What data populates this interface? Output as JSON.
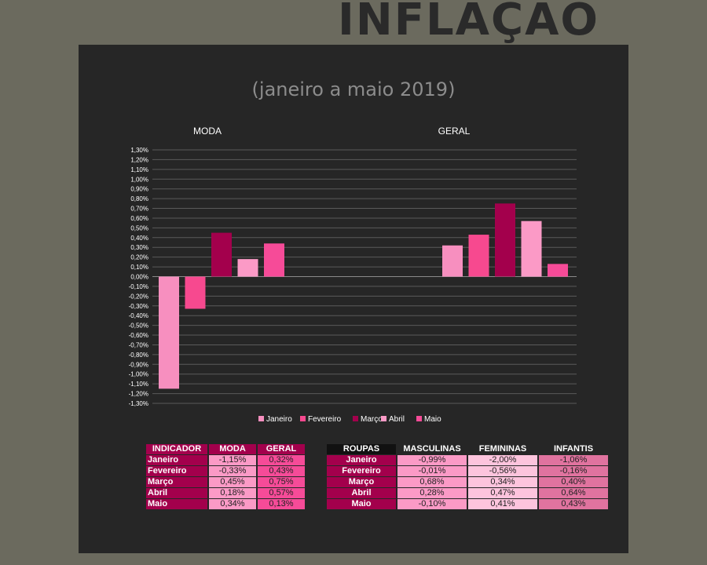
{
  "title": "INFLAÇÃO",
  "subtitle": "(janeiro a maio 2019)",
  "chart_data": {
    "type": "bar",
    "groups": [
      "MODA",
      "GERAL"
    ],
    "series": [
      {
        "name": "Janeiro",
        "values": [
          -1.15,
          0.32
        ],
        "color": "#f78fbf"
      },
      {
        "name": "Fevereiro",
        "values": [
          -0.33,
          0.43
        ],
        "color": "#f7498f"
      },
      {
        "name": "Março",
        "values": [
          0.45,
          0.75
        ],
        "color": "#a3004c"
      },
      {
        "name": "Abril",
        "values": [
          0.18,
          0.57
        ],
        "color": "#fb9ac6"
      },
      {
        "name": "Maio",
        "values": [
          0.34,
          0.13
        ],
        "color": "#f64b98"
      }
    ],
    "ylim": [
      -1.3,
      1.3
    ],
    "ytick_step": 0.1,
    "ytick_labels": [
      "1,30%",
      "1,20%",
      "1,10%",
      "1,00%",
      "0,90%",
      "0,80%",
      "0,70%",
      "0,60%",
      "0,50%",
      "0,40%",
      "0,30%",
      "0,20%",
      "0,10%",
      "0,00%",
      "-0,10%",
      "-0,20%",
      "-0,30%",
      "-0,40%",
      "-0,50%",
      "-0,60%",
      "-0,70%",
      "-0,80%",
      "-0,90%",
      "-1,00%",
      "-1,10%",
      "-1,20%",
      "-1,30%"
    ],
    "grid": true,
    "legend": "bottom"
  },
  "table1": {
    "headers": [
      "INDICADOR",
      "MODA",
      "GERAL"
    ],
    "header_colors": [
      "#a3004c",
      "#a3004c",
      "#a3004c"
    ],
    "col_colors": [
      "#fb9ac6",
      "#f64b98"
    ],
    "rows": [
      {
        "label": "Janeiro",
        "values": [
          "-1,15%",
          "0,32%"
        ]
      },
      {
        "label": "Fevereiro",
        "values": [
          "-0,33%",
          "0,43%"
        ]
      },
      {
        "label": "Março",
        "values": [
          "0,45%",
          "0,75%"
        ]
      },
      {
        "label": "Abril",
        "values": [
          "0,18%",
          "0,57%"
        ]
      },
      {
        "label": "Maio",
        "values": [
          "0,34%",
          "0,13%"
        ]
      }
    ]
  },
  "table2": {
    "headers": [
      "ROUPAS",
      "MASCULINAS",
      "FEMININAS",
      "INFANTIS"
    ],
    "header_colors": [
      "#111111",
      "#262626",
      "#262626",
      "#262626"
    ],
    "col_colors": [
      "#fb9ac6",
      "#fdc4dd",
      "#e0739f"
    ],
    "rows": [
      {
        "label": "Janeiro",
        "values": [
          "-0,99%",
          "-2,00%",
          "-1,06%"
        ]
      },
      {
        "label": "Fevereiro",
        "values": [
          "-0,01%",
          "-0,56%",
          "-0,16%"
        ]
      },
      {
        "label": "Março",
        "values": [
          "0,68%",
          "0,34%",
          "0,40%"
        ]
      },
      {
        "label": "Abril",
        "values": [
          "0,28%",
          "0,47%",
          "0,64%"
        ]
      },
      {
        "label": "Maio",
        "values": [
          "-0,10%",
          "0,41%",
          "0,43%"
        ]
      }
    ]
  },
  "row_label_color": "#a3004c"
}
